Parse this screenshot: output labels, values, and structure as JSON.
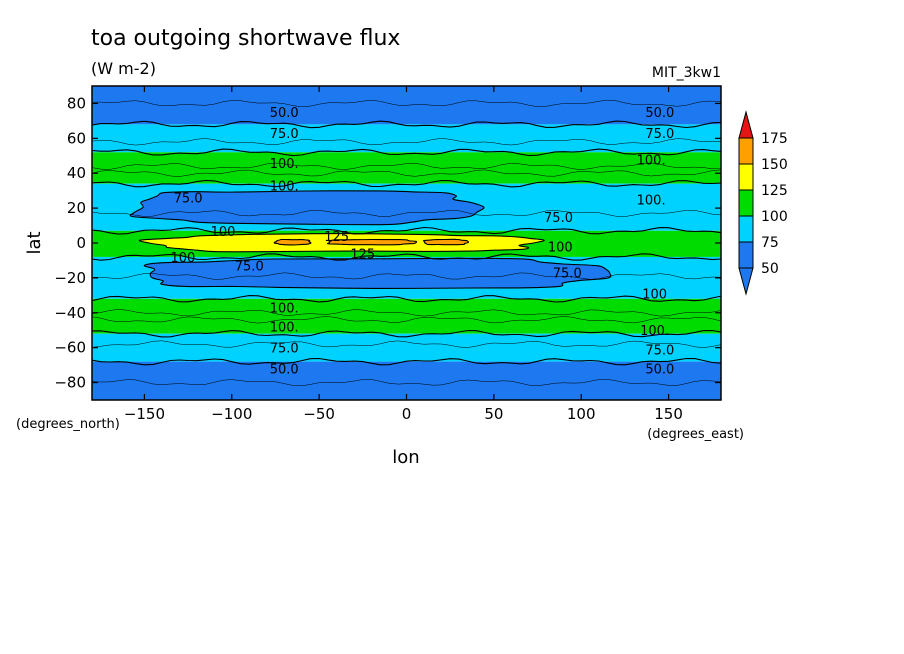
{
  "chart_data": {
    "type": "heatmap",
    "title": "toa outgoing shortwave flux",
    "subtitle": "(W m-2)",
    "dataset_label": "MIT_3kw1",
    "xlabel": "lon",
    "ylabel": "lat",
    "x_units": "(degrees_east)",
    "y_units": "(degrees_north)",
    "xlim": [
      -180,
      180
    ],
    "ylim": [
      -90,
      90
    ],
    "x_ticks": [
      -150,
      -100,
      -50,
      0,
      50,
      100,
      150
    ],
    "y_ticks": [
      -80,
      -60,
      -40,
      -20,
      0,
      20,
      40,
      60,
      80
    ],
    "levels": [
      50,
      75,
      100,
      125,
      150,
      175
    ],
    "level_colors": [
      "#1e78f0",
      "#00d2ff",
      "#00dc00",
      "#ffff00",
      "#ffa000",
      "#e61414"
    ],
    "colorbar_labels": [
      "175",
      "150",
      "125",
      "100",
      "75",
      "50"
    ],
    "bands": [
      {
        "lat": [
          68,
          90
        ],
        "level": 50
      },
      {
        "lat": [
          52,
          68
        ],
        "level": 75
      },
      {
        "lat": [
          34,
          52
        ],
        "level": 100
      },
      {
        "lat": [
          7,
          34
        ],
        "level": 75
      },
      {
        "lat": [
          -8,
          7
        ],
        "level": 100
      },
      {
        "lat": [
          -32,
          -8
        ],
        "level": 75
      },
      {
        "lat": [
          -52,
          -32
        ],
        "level": 100
      },
      {
        "lat": [
          -68,
          -52
        ],
        "level": 75
      },
      {
        "lat": [
          -90,
          -68
        ],
        "level": 50
      }
    ],
    "regions": [
      {
        "level": 50,
        "lon": [
          -155,
          40
        ],
        "lat": [
          11,
          30
        ]
      },
      {
        "level": 50,
        "lon": [
          -150,
          113
        ],
        "lat": [
          -26,
          -9
        ]
      },
      {
        "level": 125,
        "lon": [
          -145,
          75
        ],
        "lat": [
          -5,
          5
        ]
      },
      {
        "level": 150,
        "lon": [
          -75,
          -55
        ],
        "lat": [
          -1,
          2
        ]
      },
      {
        "level": 150,
        "lon": [
          -45,
          5
        ],
        "lat": [
          -1,
          2
        ]
      },
      {
        "level": 150,
        "lon": [
          10,
          35
        ],
        "lat": [
          -1,
          2
        ]
      }
    ],
    "contour_labels": [
      {
        "text": "50.0",
        "lon": -70,
        "lat": 75
      },
      {
        "text": "50.0",
        "lon": 145,
        "lat": 75
      },
      {
        "text": "75.0",
        "lon": -70,
        "lat": 63
      },
      {
        "text": "75.0",
        "lon": 145,
        "lat": 63
      },
      {
        "text": "100.",
        "lon": -70,
        "lat": 46
      },
      {
        "text": "100.",
        "lon": 140,
        "lat": 48
      },
      {
        "text": "100.",
        "lon": -70,
        "lat": 33
      },
      {
        "text": "100.",
        "lon": 140,
        "lat": 25
      },
      {
        "text": "75.0",
        "lon": -125,
        "lat": 26
      },
      {
        "text": "75.0",
        "lon": 87,
        "lat": 15
      },
      {
        "text": "100",
        "lon": -105,
        "lat": 7
      },
      {
        "text": "125",
        "lon": -40,
        "lat": 4
      },
      {
        "text": "125",
        "lon": -25,
        "lat": -6
      },
      {
        "text": "100",
        "lon": 88,
        "lat": -2
      },
      {
        "text": "100",
        "lon": -128,
        "lat": -8
      },
      {
        "text": "75.0",
        "lon": -90,
        "lat": -13
      },
      {
        "text": "75.0",
        "lon": 92,
        "lat": -17
      },
      {
        "text": "100.",
        "lon": -70,
        "lat": -37
      },
      {
        "text": "100",
        "lon": 142,
        "lat": -29
      },
      {
        "text": "100.",
        "lon": -70,
        "lat": -48
      },
      {
        "text": "100.",
        "lon": 142,
        "lat": -50
      },
      {
        "text": "75.0",
        "lon": -70,
        "lat": -60
      },
      {
        "text": "75.0",
        "lon": 145,
        "lat": -61
      },
      {
        "text": "50.0",
        "lon": -70,
        "lat": -72
      },
      {
        "text": "50.0",
        "lon": 145,
        "lat": -72
      }
    ]
  }
}
